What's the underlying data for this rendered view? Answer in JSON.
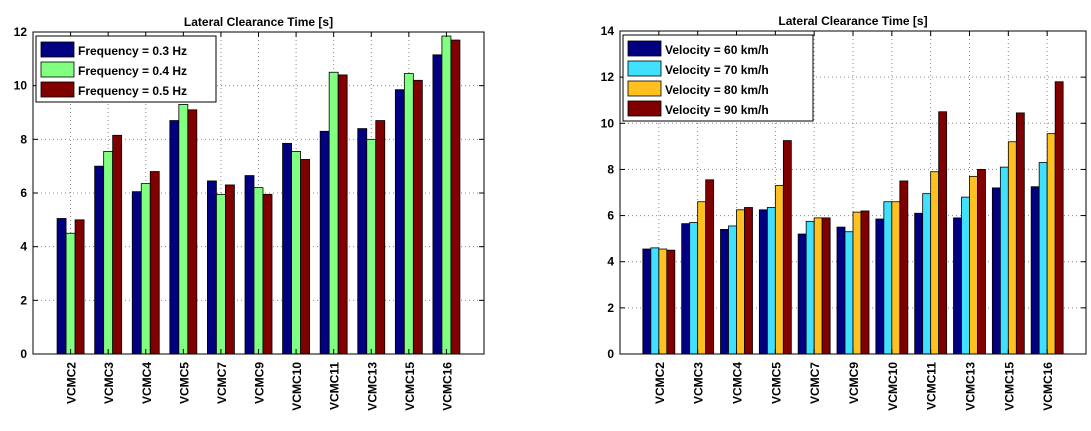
{
  "chart_data": [
    {
      "type": "bar",
      "title": "Lateral Clearance Time [s]",
      "xlabel": "",
      "ylabel": "",
      "ylim": [
        0,
        12
      ],
      "yticks": [
        0,
        2,
        4,
        6,
        8,
        10,
        12
      ],
      "grid": true,
      "legend_position": "top-left",
      "categories": [
        "VCMC2",
        "VCMC3",
        "VCMC4",
        "VCMC5",
        "VCMC7",
        "VCMC9",
        "VCMC10",
        "VCMC11",
        "VCMC13",
        "VCMC15",
        "VCMC16"
      ],
      "series": [
        {
          "name": "Frequency = 0.3 Hz",
          "color": "#000080",
          "values": [
            5.05,
            7.0,
            6.05,
            8.7,
            6.45,
            6.65,
            7.85,
            8.3,
            8.4,
            9.85,
            11.15
          ]
        },
        {
          "name": "Frequency = 0.4 Hz",
          "color": "#80ff80",
          "values": [
            4.5,
            7.55,
            6.35,
            9.3,
            5.95,
            6.2,
            7.55,
            10.5,
            8.0,
            10.45,
            11.85
          ]
        },
        {
          "name": "Frequency = 0.5 Hz",
          "color": "#800000",
          "values": [
            5.0,
            8.15,
            6.8,
            9.1,
            6.3,
            5.95,
            7.25,
            10.4,
            8.7,
            10.2,
            11.7
          ]
        }
      ]
    },
    {
      "type": "bar",
      "title": "Lateral Clearance Time [s]",
      "xlabel": "",
      "ylabel": "",
      "ylim": [
        0,
        14
      ],
      "yticks": [
        0,
        2,
        4,
        6,
        8,
        10,
        12,
        14
      ],
      "grid": true,
      "legend_position": "top-left",
      "categories": [
        "VCMC2",
        "VCMC3",
        "VCMC4",
        "VCMC5",
        "VCMC7",
        "VCMC9",
        "VCMC10",
        "VCMC11",
        "VCMC13",
        "VCMC15",
        "VCMC16"
      ],
      "series": [
        {
          "name": "Velocity = 60 km/h",
          "color": "#000080",
          "values": [
            4.55,
            5.65,
            5.4,
            6.25,
            5.2,
            5.5,
            5.85,
            6.1,
            5.9,
            7.2,
            7.25
          ]
        },
        {
          "name": "Velocity = 70 km/h",
          "color": "#40e0ff",
          "values": [
            4.6,
            5.7,
            5.55,
            6.35,
            5.75,
            5.3,
            6.6,
            6.95,
            6.8,
            8.1,
            8.3
          ]
        },
        {
          "name": "Velocity = 80 km/h",
          "color": "#ffc020",
          "values": [
            4.55,
            6.6,
            6.25,
            7.3,
            5.9,
            6.15,
            6.6,
            7.9,
            7.7,
            9.2,
            9.55
          ]
        },
        {
          "name": "Velocity = 90 km/h",
          "color": "#800000",
          "values": [
            4.5,
            7.55,
            6.35,
            9.25,
            5.9,
            6.2,
            7.5,
            10.5,
            8.0,
            10.45,
            11.8
          ]
        }
      ]
    }
  ]
}
